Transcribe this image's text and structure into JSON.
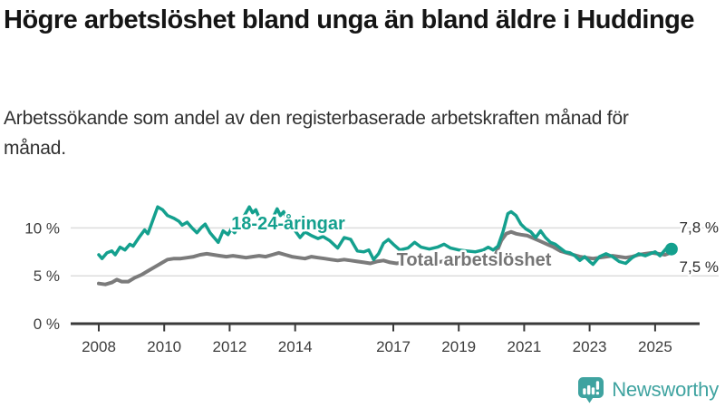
{
  "header": {
    "title": "Högre arbetslöshet bland unga än bland äldre i Huddinge",
    "subtitle": "Arbetssökande som andel av den registerbaserade arbetskraften månad för månad."
  },
  "colors": {
    "young_series": "#14a08e",
    "total_series": "#7b7b7b",
    "total_label": "#757575",
    "grid": "#dcdcdc",
    "axis": "#3a3a3a",
    "title_text": "#151515",
    "body_text": "#303030",
    "value_label_text": "#2e2e2e",
    "brand_teal": "#3fa3a0"
  },
  "chart_data": {
    "type": "line",
    "title": "Högre arbetslöshet bland unga än bland äldre i Huddinge",
    "subtitle": "Arbetssökande som andel av den registerbaserade arbetskraften månad för månad.",
    "unit": "%",
    "grid": "horizontal",
    "legend_position": "inline-labels",
    "x_axis": {
      "range": [
        2007.2,
        2026.3
      ],
      "ticks": [
        2008,
        2010,
        2012,
        2014,
        2017,
        2019,
        2021,
        2023,
        2025
      ],
      "tick_labels": [
        "2008",
        "2010",
        "2012",
        "2014",
        "2017",
        "2019",
        "2021",
        "2023",
        "2025"
      ]
    },
    "y_axis": {
      "range": [
        0,
        14
      ],
      "ticks": [
        0,
        5,
        10
      ],
      "tick_labels": [
        "0 %",
        "5 %",
        "10 %"
      ]
    },
    "series": [
      {
        "name": "Total arbetslöshet",
        "color": "#7b7b7b",
        "label_anchor": {
          "x": 2017.1,
          "y": 6.05
        },
        "points": [
          [
            2008.0,
            4.2
          ],
          [
            2008.2,
            4.1
          ],
          [
            2008.4,
            4.3
          ],
          [
            2008.55,
            4.6
          ],
          [
            2008.7,
            4.4
          ],
          [
            2008.9,
            4.4
          ],
          [
            2009.1,
            4.8
          ],
          [
            2009.3,
            5.1
          ],
          [
            2009.5,
            5.5
          ],
          [
            2009.7,
            5.9
          ],
          [
            2009.9,
            6.3
          ],
          [
            2010.1,
            6.7
          ],
          [
            2010.3,
            6.8
          ],
          [
            2010.5,
            6.8
          ],
          [
            2010.7,
            6.9
          ],
          [
            2010.9,
            7.0
          ],
          [
            2011.1,
            7.2
          ],
          [
            2011.3,
            7.3
          ],
          [
            2011.5,
            7.2
          ],
          [
            2011.7,
            7.1
          ],
          [
            2011.9,
            7.0
          ],
          [
            2012.1,
            7.1
          ],
          [
            2012.3,
            7.0
          ],
          [
            2012.5,
            6.9
          ],
          [
            2012.7,
            7.0
          ],
          [
            2012.9,
            7.1
          ],
          [
            2013.1,
            7.0
          ],
          [
            2013.3,
            7.2
          ],
          [
            2013.5,
            7.4
          ],
          [
            2013.7,
            7.2
          ],
          [
            2013.9,
            7.0
          ],
          [
            2014.1,
            6.9
          ],
          [
            2014.3,
            6.8
          ],
          [
            2014.5,
            7.0
          ],
          [
            2014.7,
            6.9
          ],
          [
            2014.9,
            6.8
          ],
          [
            2015.1,
            6.7
          ],
          [
            2015.3,
            6.6
          ],
          [
            2015.5,
            6.7
          ],
          [
            2015.7,
            6.6
          ],
          [
            2015.9,
            6.5
          ],
          [
            2016.1,
            6.4
          ],
          [
            2016.3,
            6.3
          ],
          [
            2016.5,
            6.5
          ],
          [
            2016.7,
            6.6
          ],
          [
            2016.9,
            6.4
          ],
          [
            2017.1,
            6.3
          ],
          [
            2017.3,
            6.4
          ],
          [
            2017.5,
            6.5
          ],
          [
            2017.7,
            6.4
          ],
          [
            2017.9,
            6.3
          ],
          [
            2018.1,
            6.3
          ],
          [
            2018.3,
            6.4
          ],
          [
            2018.5,
            6.5
          ],
          [
            2018.7,
            6.4
          ],
          [
            2018.9,
            6.3
          ],
          [
            2019.1,
            6.3
          ],
          [
            2019.3,
            6.4
          ],
          [
            2019.5,
            6.5
          ],
          [
            2019.7,
            6.5
          ],
          [
            2019.9,
            6.6
          ],
          [
            2020.1,
            7.0
          ],
          [
            2020.3,
            8.7
          ],
          [
            2020.45,
            9.4
          ],
          [
            2020.6,
            9.6
          ],
          [
            2020.75,
            9.4
          ],
          [
            2020.9,
            9.3
          ],
          [
            2021.1,
            9.2
          ],
          [
            2021.3,
            8.9
          ],
          [
            2021.5,
            8.6
          ],
          [
            2021.7,
            8.3
          ],
          [
            2021.9,
            8.0
          ],
          [
            2022.1,
            7.6
          ],
          [
            2022.3,
            7.4
          ],
          [
            2022.5,
            7.2
          ],
          [
            2022.7,
            7.0
          ],
          [
            2022.9,
            6.9
          ],
          [
            2023.1,
            6.8
          ],
          [
            2023.3,
            6.9
          ],
          [
            2023.5,
            7.0
          ],
          [
            2023.7,
            7.1
          ],
          [
            2023.9,
            7.0
          ],
          [
            2024.1,
            6.9
          ],
          [
            2024.3,
            7.0
          ],
          [
            2024.5,
            7.2
          ],
          [
            2024.7,
            7.3
          ],
          [
            2024.9,
            7.4
          ],
          [
            2025.1,
            7.3
          ],
          [
            2025.3,
            7.2
          ],
          [
            2025.55,
            7.5
          ]
        ],
        "latest_value": 7.5
      },
      {
        "name": "18-24-åringar",
        "color": "#14a08e",
        "label_anchor": {
          "x": 2012.05,
          "y": 9.85
        },
        "points": [
          [
            2008.0,
            7.2
          ],
          [
            2008.1,
            6.8
          ],
          [
            2008.25,
            7.4
          ],
          [
            2008.4,
            7.6
          ],
          [
            2008.5,
            7.2
          ],
          [
            2008.65,
            8.0
          ],
          [
            2008.8,
            7.7
          ],
          [
            2008.95,
            8.3
          ],
          [
            2009.05,
            8.1
          ],
          [
            2009.25,
            9.1
          ],
          [
            2009.4,
            9.8
          ],
          [
            2009.5,
            9.4
          ],
          [
            2009.65,
            10.8
          ],
          [
            2009.8,
            12.2
          ],
          [
            2009.95,
            11.9
          ],
          [
            2010.1,
            11.3
          ],
          [
            2010.3,
            11.0
          ],
          [
            2010.45,
            10.7
          ],
          [
            2010.55,
            10.3
          ],
          [
            2010.7,
            10.6
          ],
          [
            2010.85,
            10.0
          ],
          [
            2011.0,
            9.5
          ],
          [
            2011.15,
            10.1
          ],
          [
            2011.25,
            10.4
          ],
          [
            2011.4,
            9.5
          ],
          [
            2011.55,
            8.9
          ],
          [
            2011.65,
            8.5
          ],
          [
            2011.8,
            9.7
          ],
          [
            2011.95,
            9.3
          ],
          [
            2012.05,
            9.9
          ],
          [
            2012.15,
            9.5
          ],
          [
            2012.3,
            10.4
          ],
          [
            2012.45,
            11.3
          ],
          [
            2012.6,
            12.2
          ],
          [
            2012.7,
            11.6
          ],
          [
            2012.8,
            11.9
          ],
          [
            2012.95,
            10.7
          ],
          [
            2013.1,
            10.2
          ],
          [
            2013.3,
            10.9
          ],
          [
            2013.45,
            12.0
          ],
          [
            2013.55,
            11.3
          ],
          [
            2013.65,
            11.7
          ],
          [
            2013.8,
            10.5
          ],
          [
            2014.0,
            9.7
          ],
          [
            2014.15,
            9.0
          ],
          [
            2014.3,
            9.6
          ],
          [
            2014.5,
            9.2
          ],
          [
            2014.7,
            8.9
          ],
          [
            2014.85,
            9.1
          ],
          [
            2015.05,
            8.7
          ],
          [
            2015.3,
            7.9
          ],
          [
            2015.5,
            9.0
          ],
          [
            2015.7,
            8.8
          ],
          [
            2015.9,
            7.6
          ],
          [
            2016.1,
            7.5
          ],
          [
            2016.25,
            7.7
          ],
          [
            2016.4,
            6.7
          ],
          [
            2016.55,
            7.3
          ],
          [
            2016.7,
            8.4
          ],
          [
            2016.85,
            8.8
          ],
          [
            2017.0,
            8.3
          ],
          [
            2017.2,
            7.7
          ],
          [
            2017.45,
            7.9
          ],
          [
            2017.65,
            8.5
          ],
          [
            2017.85,
            8.0
          ],
          [
            2018.1,
            7.8
          ],
          [
            2018.35,
            8.0
          ],
          [
            2018.55,
            8.3
          ],
          [
            2018.75,
            7.9
          ],
          [
            2019.0,
            7.7
          ],
          [
            2019.25,
            7.6
          ],
          [
            2019.5,
            7.5
          ],
          [
            2019.75,
            7.7
          ],
          [
            2019.9,
            8.0
          ],
          [
            2020.05,
            7.7
          ],
          [
            2020.2,
            8.1
          ],
          [
            2020.35,
            9.6
          ],
          [
            2020.5,
            11.5
          ],
          [
            2020.6,
            11.7
          ],
          [
            2020.75,
            11.3
          ],
          [
            2020.9,
            10.4
          ],
          [
            2021.05,
            9.9
          ],
          [
            2021.2,
            9.6
          ],
          [
            2021.35,
            9.0
          ],
          [
            2021.5,
            9.7
          ],
          [
            2021.65,
            9.0
          ],
          [
            2021.8,
            8.5
          ],
          [
            2021.95,
            8.3
          ],
          [
            2022.1,
            7.9
          ],
          [
            2022.25,
            7.5
          ],
          [
            2022.4,
            7.4
          ],
          [
            2022.55,
            7.1
          ],
          [
            2022.7,
            6.6
          ],
          [
            2022.85,
            7.0
          ],
          [
            2023.0,
            6.5
          ],
          [
            2023.1,
            6.2
          ],
          [
            2023.3,
            7.0
          ],
          [
            2023.5,
            7.3
          ],
          [
            2023.7,
            7.0
          ],
          [
            2023.9,
            6.5
          ],
          [
            2024.1,
            6.3
          ],
          [
            2024.3,
            6.9
          ],
          [
            2024.5,
            7.3
          ],
          [
            2024.7,
            7.1
          ],
          [
            2024.85,
            7.3
          ],
          [
            2025.0,
            7.5
          ],
          [
            2025.15,
            7.1
          ],
          [
            2025.35,
            7.9
          ],
          [
            2025.5,
            7.8
          ]
        ],
        "latest_value": 7.8,
        "end_dot": true
      }
    ],
    "end_labels": [
      {
        "text": "7,8 %",
        "value": 7.8,
        "series": "18-24-åringar"
      },
      {
        "text": "7,5 %",
        "value": 7.5,
        "series": "Total arbetslöshet"
      }
    ]
  },
  "branding": {
    "name": "Newsworthy"
  }
}
